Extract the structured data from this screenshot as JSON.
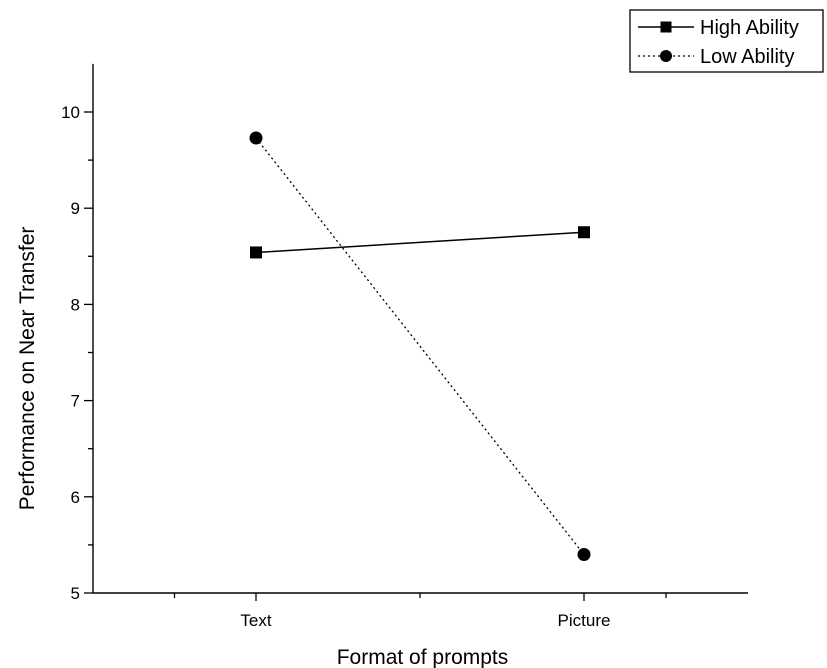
{
  "chart_data": {
    "type": "line",
    "title": "",
    "xlabel": "Format of prompts",
    "ylabel": "Performance on Near Transfer",
    "categories": [
      "Text",
      "Picture"
    ],
    "ylim": [
      5,
      10.5
    ],
    "yticks": [
      "5",
      "6",
      "7",
      "8",
      "9",
      "10"
    ],
    "grid": false,
    "legend_position": "top-right",
    "series": [
      {
        "name": "High Ability",
        "values": [
          8.54,
          8.75
        ],
        "marker": "square",
        "line_style": "solid",
        "color": "#000000"
      },
      {
        "name": "Low Ability",
        "values": [
          9.73,
          5.4
        ],
        "marker": "circle",
        "line_style": "dotted",
        "color": "#000000"
      }
    ]
  }
}
